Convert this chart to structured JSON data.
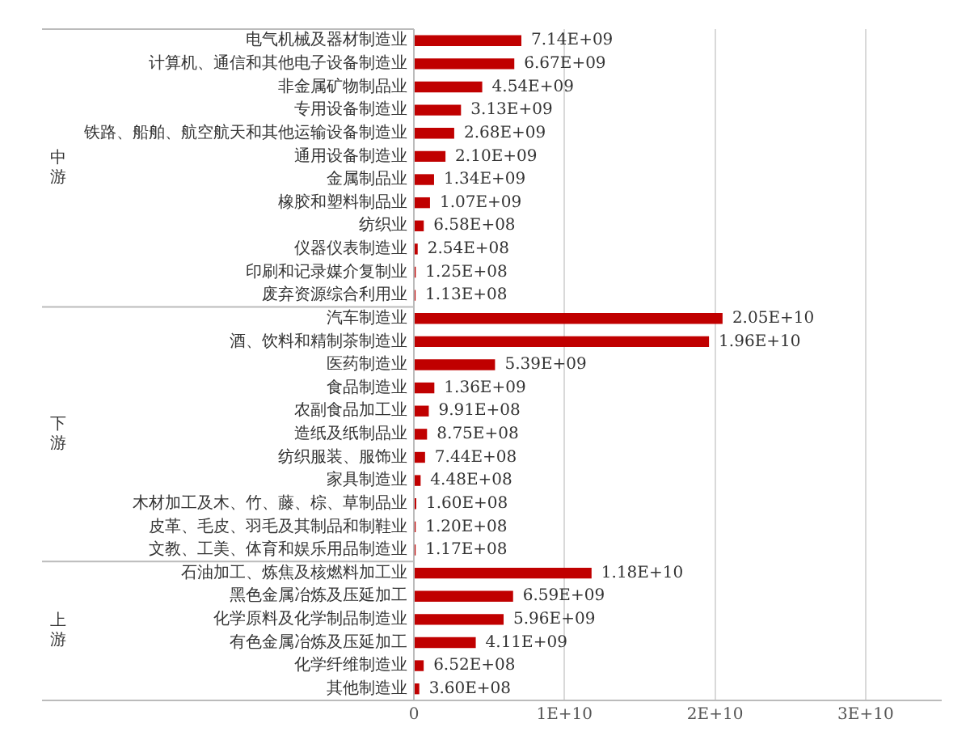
{
  "chart_data": {
    "type": "bar",
    "orientation": "horizontal",
    "categories": [
      "电气机械及器材制造业",
      "计算机、通信和其他电子设备制造业",
      "非金属矿物制品业",
      "专用设备制造业",
      "铁路、船舶、航空航天和其他运输设备制造业",
      "通用设备制造业",
      "金属制品业",
      "橡胶和塑料制品业",
      "纺织业",
      "仪器仪表制造业",
      "印刷和记录媒介复制业",
      "废弃资源综合利用业",
      "汽车制造业",
      "酒、饮料和精制茶制造业",
      "医药制造业",
      "食品制造业",
      "农副食品加工业",
      "造纸及纸制品业",
      "纺织服装、服饰业",
      "家具制造业",
      "木材加工及木、竹、藤、棕、草制品业",
      "皮革、毛皮、羽毛及其制品和制鞋业",
      "文教、工美、体育和娱乐用品制造业",
      "石油加工、炼焦及核燃料加工业",
      "黑色金属冶炼及压延加工",
      "化学原料及化学制品制造业",
      "有色金属冶炼及压延加工",
      "化学纤维制造业",
      "其他制造业"
    ],
    "values": [
      7140000000,
      6670000000,
      4540000000,
      3130000000,
      2680000000,
      2100000000,
      1340000000,
      1070000000,
      658000000,
      254000000,
      125000000,
      113000000,
      20500000000,
      19600000000,
      5390000000,
      1360000000,
      991000000,
      875000000,
      744000000,
      448000000,
      160000000,
      120000000,
      117000000,
      11800000000,
      6590000000,
      5960000000,
      4110000000,
      652000000,
      360000000
    ],
    "value_labels": [
      "7.14E+09",
      "6.67E+09",
      "4.54E+09",
      "3.13E+09",
      "2.68E+09",
      "2.10E+09",
      "1.34E+09",
      "1.07E+09",
      "6.58E+08",
      "2.54E+08",
      "1.25E+08",
      "1.13E+08",
      "2.05E+10",
      "1.96E+10",
      "5.39E+09",
      "1.36E+09",
      "9.91E+08",
      "8.75E+08",
      "7.44E+08",
      "4.48E+08",
      "1.60E+08",
      "1.20E+08",
      "1.17E+08",
      "1.18E+10",
      "6.59E+09",
      "5.96E+09",
      "4.11E+09",
      "6.52E+08",
      "3.60E+08"
    ],
    "color": "#c00000",
    "xlim": [
      0,
      35000000000
    ],
    "xticks": [
      0,
      {
        "value": 10000000000,
        "label": "1E+10"
      },
      {
        "value": 20000000000,
        "label": "2E+10"
      },
      {
        "value": 30000000000,
        "label": "3E+10"
      }
    ],
    "annotations": [
      "中游",
      "下游",
      "上游"
    ],
    "grid": "x",
    "legend": false
  }
}
